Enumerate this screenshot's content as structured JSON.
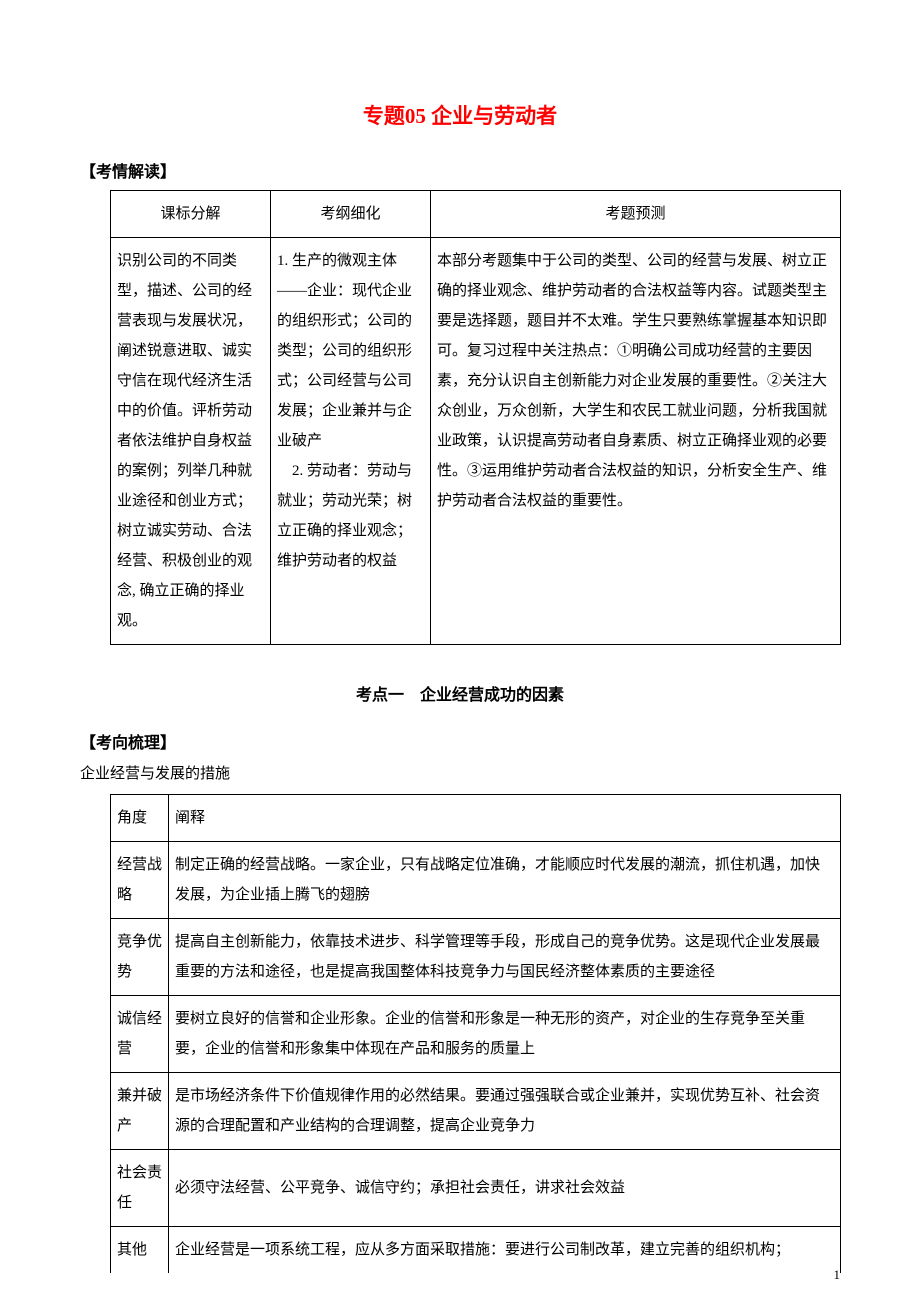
{
  "title_text": "专题05 企业与劳动者",
  "title_color": "#ff0000",
  "section_label_1": "【考情解读】",
  "table1": {
    "headers": [
      "课标分解",
      "考纲细化",
      "考题预测"
    ],
    "row": {
      "col1": "识别公司的不同类型，描述、公司的经营表现与发展状况，阐述锐意进取、诚实守信在现代经济生活中的价值。评析劳动者依法维护自身权益的案例；列举几种就业途径和创业方式；树立诚实劳动、合法经营、积极创业的观念, 确立正确的择业观。",
      "col2": "1. 生产的微观主体——企业：现代企业的组织形式；公司的类型；公司的组织形式；公司经营与公司发展；企业兼并与企业破产\n　2. 劳动者：劳动与就业；劳动光荣；树立正确的择业观念；维护劳动者的权益",
      "col3": "本部分考题集中于公司的类型、公司的经营与发展、树立正确的择业观念、维护劳动者的合法权益等内容。试题类型主要是选择题，题目并不太难。学生只要熟练掌握基本知识即可。复习过程中关注热点：①明确公司成功经营的主要因素，充分认识自主创新能力对企业发展的重要性。②关注大众创业，万众创新，大学生和农民工就业问题，分析我国就业政策，认识提高劳动者自身素质、树立正确择业观的必要性。③运用维护劳动者合法权益的知识，分析安全生产、维护劳动者合法权益的重要性。"
    }
  },
  "exam_point": "考点一　企业经营成功的因素",
  "section_label_2": "【考向梳理】",
  "body_line": "企业经营与发展的措施",
  "table2": {
    "headers": [
      "角度",
      "阐释"
    ],
    "rows": [
      {
        "c1": "经营战略",
        "c2": "制定正确的经营战略。一家企业，只有战略定位准确，才能顺应时代发展的潮流，抓住机遇，加快发展，为企业插上腾飞的翅膀"
      },
      {
        "c1": "竞争优势",
        "c2": "提高自主创新能力，依靠技术进步、科学管理等手段，形成自己的竞争优势。这是现代企业发展最重要的方法和途径，也是提高我国整体科技竞争力与国民经济整体素质的主要途径"
      },
      {
        "c1": "诚信经营",
        "c2": "要树立良好的信誉和企业形象。企业的信誉和形象是一种无形的资产，对企业的生存竞争至关重要，企业的信誉和形象集中体现在产品和服务的质量上"
      },
      {
        "c1": "兼并破产",
        "c2": "是市场经济条件下价值规律作用的必然结果。要通过强强联合或企业兼并，实现优势互补、社会资源的合理配置和产业结构的合理调整，提高企业竞争力"
      },
      {
        "c1": "社会责任",
        "c2": "必须守法经营、公平竞争、诚信守约；承担社会责任，讲求社会效益"
      },
      {
        "c1": "其他",
        "c2": "企业经营是一项系统工程，应从多方面采取措施：要进行公司制改革，建立完善的组织机构；"
      }
    ]
  },
  "page_number": "1"
}
